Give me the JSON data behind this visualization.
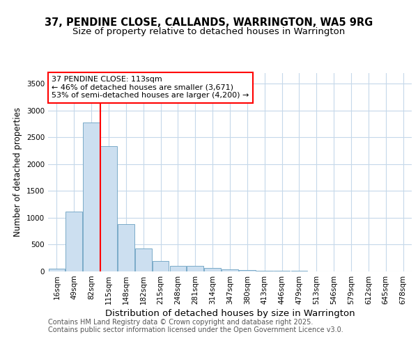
{
  "title1": "37, PENDINE CLOSE, CALLANDS, WARRINGTON, WA5 9RG",
  "title2": "Size of property relative to detached houses in Warrington",
  "xlabel": "Distribution of detached houses by size in Warrington",
  "ylabel": "Number of detached properties",
  "categories": [
    "16sqm",
    "49sqm",
    "82sqm",
    "115sqm",
    "148sqm",
    "182sqm",
    "215sqm",
    "248sqm",
    "281sqm",
    "314sqm",
    "347sqm",
    "380sqm",
    "413sqm",
    "446sqm",
    "479sqm",
    "513sqm",
    "546sqm",
    "579sqm",
    "612sqm",
    "645sqm",
    "678sqm"
  ],
  "values": [
    55,
    1120,
    2775,
    2340,
    880,
    430,
    190,
    110,
    100,
    65,
    35,
    25,
    18,
    12,
    8,
    6,
    4,
    3,
    2,
    2,
    1
  ],
  "bar_color": "#ccdff0",
  "bar_edge_color": "#7aaac8",
  "red_line_index": 3,
  "annotation_title": "37 PENDINE CLOSE: 113sqm",
  "annotation_line1": "← 46% of detached houses are smaller (3,671)",
  "annotation_line2": "53% of semi-detached houses are larger (4,200) →",
  "ylim": [
    0,
    3700
  ],
  "yticks": [
    0,
    500,
    1000,
    1500,
    2000,
    2500,
    3000,
    3500
  ],
  "footer1": "Contains HM Land Registry data © Crown copyright and database right 2025.",
  "footer2": "Contains public sector information licensed under the Open Government Licence v3.0.",
  "bg_color": "#ffffff",
  "grid_color": "#c5d8ea",
  "title1_fontsize": 10.5,
  "title2_fontsize": 9.5,
  "xlabel_fontsize": 9.5,
  "ylabel_fontsize": 8.5,
  "tick_fontsize": 7.5,
  "annotation_fontsize": 8,
  "footer_fontsize": 7
}
